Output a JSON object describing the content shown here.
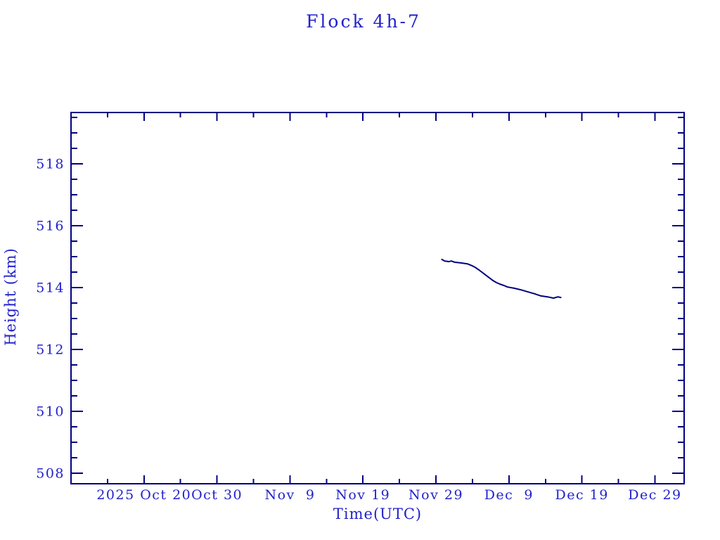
{
  "colors": {
    "background": "#ffffff",
    "text": "#2222cc",
    "axis": "#000080",
    "line": "#000080"
  },
  "chart_data": {
    "type": "line",
    "title": "Flock 4h-7",
    "xlabel": "Time(UTC)",
    "ylabel": "Height (km)",
    "grid": false,
    "legend": false,
    "x_axis": {
      "unit": "days since 2025 Oct 10",
      "range": [
        0,
        84
      ],
      "major_ticks": [
        {
          "day": 10,
          "label": "2025 Oct 20"
        },
        {
          "day": 20,
          "label": "Oct 30"
        },
        {
          "day": 30,
          "label": "Nov  9"
        },
        {
          "day": 40,
          "label": "Nov 19"
        },
        {
          "day": 50,
          "label": "Nov 29"
        },
        {
          "day": 60,
          "label": "Dec  9"
        },
        {
          "day": 70,
          "label": "Dec 19"
        },
        {
          "day": 80,
          "label": "Dec 29"
        }
      ],
      "minor_tick_days": [
        5,
        15,
        25,
        35,
        45,
        55,
        65,
        75
      ]
    },
    "y_axis": {
      "unit": "km",
      "range": [
        507.66,
        519.66
      ],
      "major_ticks": [
        {
          "km": 508,
          "label": "508"
        },
        {
          "km": 510,
          "label": "510"
        },
        {
          "km": 512,
          "label": "512"
        },
        {
          "km": 514,
          "label": "514"
        },
        {
          "km": 516,
          "label": "516"
        },
        {
          "km": 518,
          "label": "518"
        }
      ],
      "minor_step": 0.5
    },
    "series": [
      {
        "name": "Flock 4h-7 height",
        "color": "#000080",
        "points_day_km": [
          [
            50.8,
            514.91
          ],
          [
            51.2,
            514.86
          ],
          [
            51.8,
            514.84
          ],
          [
            52.1,
            514.86
          ],
          [
            52.6,
            514.82
          ],
          [
            53.3,
            514.8
          ],
          [
            54.3,
            514.77
          ],
          [
            55.0,
            514.7
          ],
          [
            55.4,
            514.65
          ],
          [
            55.9,
            514.57
          ],
          [
            56.4,
            514.48
          ],
          [
            56.9,
            514.39
          ],
          [
            57.4,
            514.3
          ],
          [
            57.8,
            514.23
          ],
          [
            58.3,
            514.16
          ],
          [
            58.8,
            514.11
          ],
          [
            59.3,
            514.07
          ],
          [
            59.8,
            514.02
          ],
          [
            60.7,
            513.98
          ],
          [
            61.6,
            513.93
          ],
          [
            62.5,
            513.87
          ],
          [
            63.5,
            513.8
          ],
          [
            64.4,
            513.73
          ],
          [
            65.3,
            513.7
          ],
          [
            66.1,
            513.66
          ],
          [
            66.7,
            513.7
          ],
          [
            67.1,
            513.68
          ]
        ]
      }
    ]
  }
}
